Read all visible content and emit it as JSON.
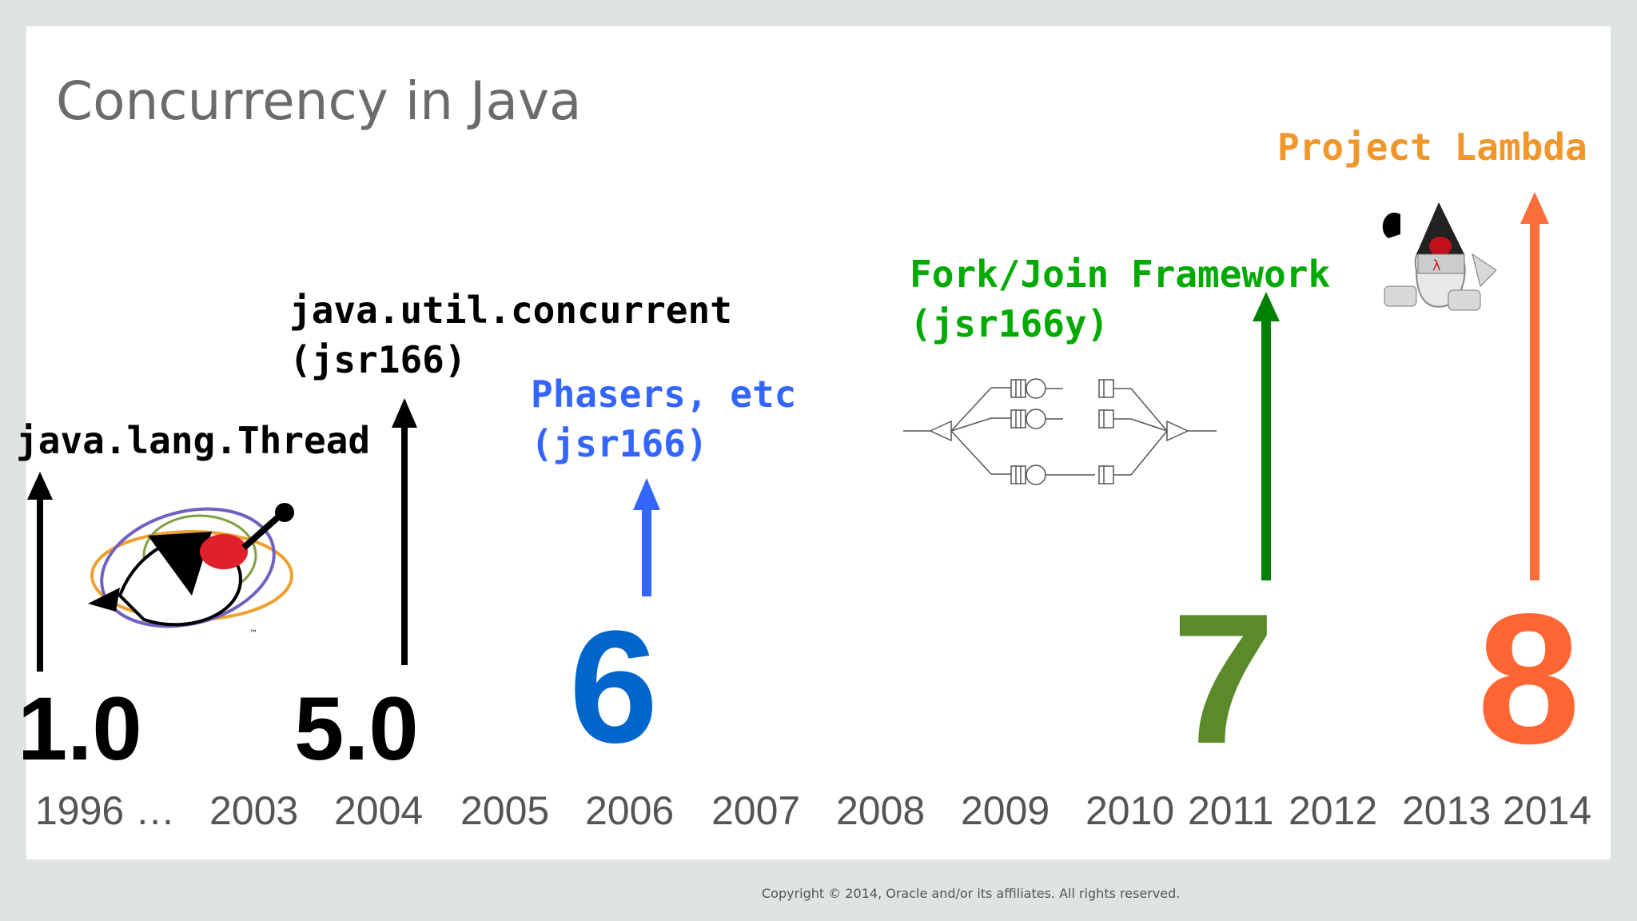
{
  "slide": {
    "title": "Concurrency in Java",
    "copyright": "Copyright © 2014, Oracle and/or its affiliates. All rights reserved."
  },
  "milestones": {
    "thread": {
      "label": "java.lang.Thread",
      "version": "1.0",
      "color": "#000000"
    },
    "util_concurrent": {
      "label_line1": "java.util.concurrent",
      "label_line2": "(jsr166)",
      "version": "5.0",
      "color": "#000000"
    },
    "phasers": {
      "label_line1": "Phasers, etc",
      "label_line2": "(jsr166)",
      "version": "6",
      "label_color": "#3366ff",
      "version_color": "#0066cc"
    },
    "forkjoin": {
      "label_line1": "Fork/Join Framework",
      "label_line2": "(jsr166y)",
      "version": "7",
      "label_color": "#00aa00",
      "arrow_color": "#008000",
      "version_color": "#5b8a2b"
    },
    "lambda": {
      "label": "Project Lambda",
      "version": "8",
      "label_color": "#f0962a",
      "arrow_color": "#fa6e3c",
      "version_color": "#ff6633"
    }
  },
  "years": [
    "1996 …",
    "2003",
    "2004",
    "2005",
    "2006",
    "2007",
    "2008",
    "2009",
    "2010",
    "2011",
    "2012",
    "2013",
    "2014"
  ],
  "images": {
    "duke_thread": "duke-juggling-threads-icon",
    "forkjoin_diagram": "fork-join-queue-diagram",
    "duke_lambda": "duke-lambda-astronaut-icon"
  }
}
